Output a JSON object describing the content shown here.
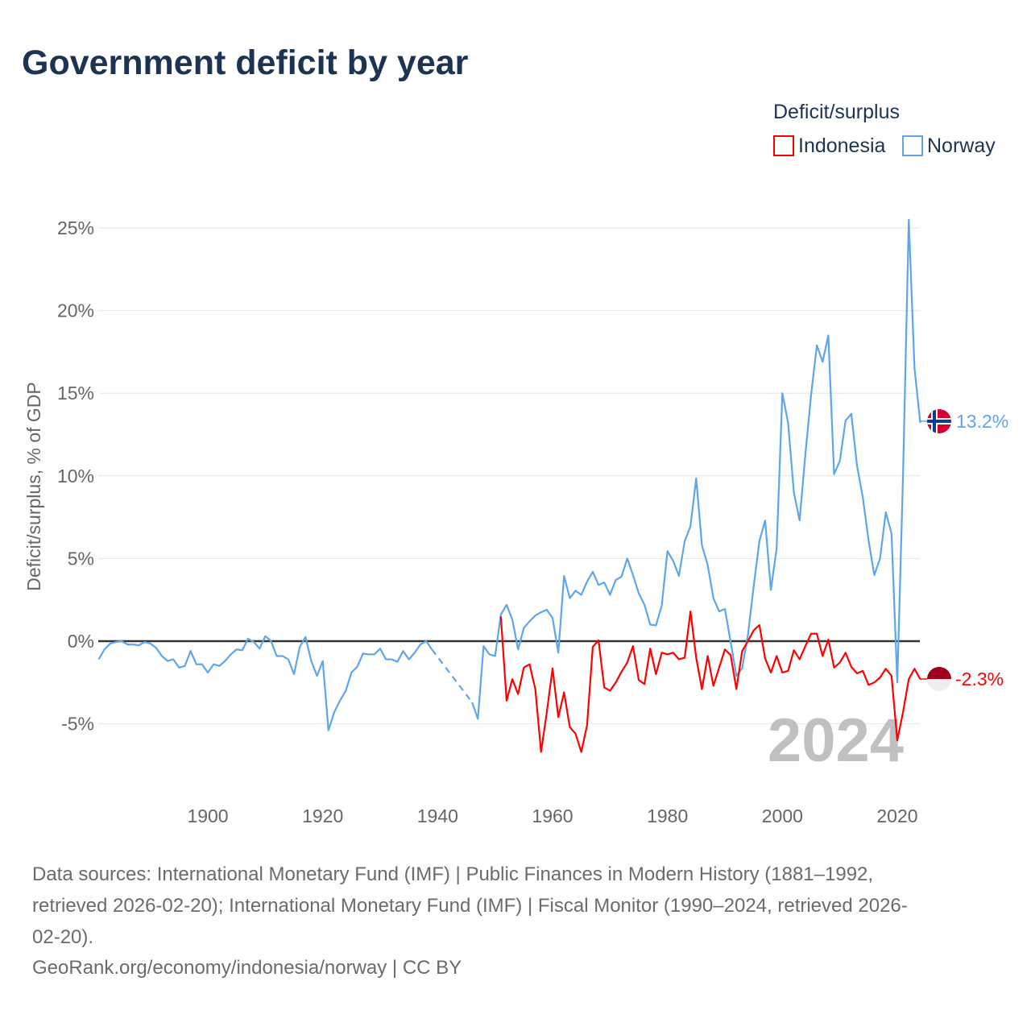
{
  "title": "Government deficit by year",
  "legend": {
    "title": "Deficit/surplus",
    "items": [
      {
        "label": "Indonesia",
        "color": "#ff0000"
      },
      {
        "label": "Norway",
        "color": "#5ea6eb"
      }
    ]
  },
  "watermark_year": "2024",
  "footer": {
    "lines": [
      "Data sources: International Monetary Fund (IMF) | Public Finances in Modern History (1881–1992,",
      "retrieved 2026-02-20); International Monetary Fund (IMF) | Fiscal Monitor (1990–2024, retrieved 2026-",
      "02-20).",
      "GeoRank.org/economy/indonesia/norway | CC BY"
    ]
  },
  "chart_data": {
    "type": "line",
    "title": "Government deficit by year",
    "xlabel": "",
    "ylabel": "Deficit/surplus, % of GDP",
    "xlim": [
      1881,
      2024
    ],
    "ylim": [
      -8.5,
      26
    ],
    "x_ticks": [
      1900,
      1920,
      1940,
      1960,
      1980,
      2000,
      2020
    ],
    "x_tick_labels": [
      "1900",
      "1920",
      "1940",
      "1960",
      "1980",
      "2000",
      "2020"
    ],
    "y_ticks": [
      -5,
      0,
      5,
      10,
      15,
      20,
      25
    ],
    "y_tick_labels": [
      "-5%",
      "0%",
      "5%",
      "10%",
      "15%",
      "20%",
      "25%"
    ],
    "grid": true,
    "legend_position": "top-right",
    "series": [
      {
        "name": "Norway",
        "color": "#5ea6eb",
        "start_year": 1881,
        "end_label": "13.2%",
        "values": [
          -1.1,
          -0.5,
          -0.15,
          -0.05,
          0,
          -0.2,
          -0.2,
          -0.25,
          -0.05,
          -0.15,
          -0.4,
          -0.9,
          -1.2,
          -1.1,
          -1.6,
          -1.5,
          -0.6,
          -1.4,
          -1.4,
          -1.9,
          -1.4,
          -1.5,
          -1.2,
          -0.8,
          -0.5,
          -0.55,
          0.15,
          -0.05,
          -0.45,
          0.3,
          0,
          -0.9,
          -0.9,
          -1.1,
          -2.0,
          -0.35,
          0.25,
          -1.2,
          -2.1,
          -1.2,
          -5.4,
          -4.3,
          -3.6,
          -3.0,
          -1.9,
          -1.55,
          -0.75,
          -0.8,
          -0.8,
          -0.45,
          -1.1,
          -1.1,
          -1.25,
          -0.6,
          -1.1,
          -0.7,
          -0.2,
          0,
          -0.5,
          null,
          null,
          null,
          null,
          null,
          null,
          -3.7,
          -4.7,
          -0.3,
          -0.8,
          -0.9,
          1.6,
          2.2,
          1.3,
          -0.5,
          0.8,
          1.2,
          1.55,
          1.75,
          1.9,
          1.4,
          -0.7,
          3.95,
          2.6,
          3.05,
          2.8,
          3.6,
          4.2,
          3.4,
          3.55,
          2.8,
          3.7,
          3.9,
          5.0,
          4.0,
          2.9,
          2.2,
          1.0,
          0.95,
          2.15,
          5.45,
          4.85,
          3.95,
          6.05,
          6.95,
          9.85,
          5.8,
          4.6,
          2.6,
          1.8,
          1.95,
          -0.05,
          -2.1,
          -1.65,
          0.35,
          3.3,
          6.05,
          7.3,
          3.1,
          5.6,
          15.0,
          13.2,
          9.0,
          7.3,
          11.3,
          14.9,
          17.9,
          16.9,
          18.5,
          10.1,
          10.9,
          13.35,
          13.75,
          10.6,
          8.7,
          6.1,
          4.0,
          5.0,
          7.8,
          6.5,
          -2.5,
          10.0,
          25.5,
          16.5,
          13.2
        ]
      },
      {
        "name": "Indonesia",
        "color": "#ff0000",
        "start_year": 1951,
        "end_label": "-2.3%",
        "values": [
          1.5,
          -3.6,
          -2.3,
          -3.2,
          -1.6,
          -1.4,
          -2.9,
          -6.7,
          -4.3,
          -1.65,
          -4.6,
          -3.1,
          -5.2,
          -5.6,
          -6.7,
          -5.1,
          -0.35,
          0.05,
          -2.8,
          -3.0,
          -2.5,
          -1.85,
          -1.3,
          -0.3,
          -2.35,
          -2.6,
          -0.45,
          -2.0,
          -0.7,
          -0.8,
          -0.7,
          -1.1,
          -1.0,
          1.8,
          -1.0,
          -2.9,
          -0.9,
          -2.7,
          -1.6,
          -0.5,
          -0.85,
          -2.9,
          -0.6,
          0.0,
          0.65,
          0.97,
          -1.05,
          -1.9,
          -0.9,
          -1.9,
          -1.8,
          -0.55,
          -1.1,
          -0.3,
          0.45,
          0.45,
          -0.9,
          0.1,
          -1.6,
          -1.3,
          -0.7,
          -1.56,
          -1.95,
          -1.8,
          -2.65,
          -2.5,
          -2.2,
          -1.67,
          -2.1,
          -6.0,
          -4.3,
          -2.3,
          -1.67,
          -2.3
        ]
      }
    ]
  }
}
